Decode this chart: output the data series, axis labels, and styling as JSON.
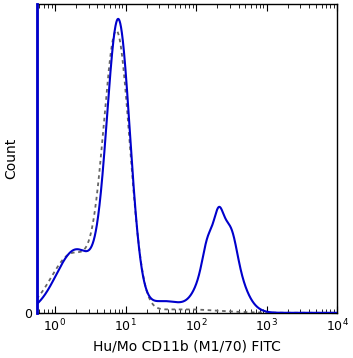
{
  "title": "",
  "xlabel": "Hu/Mo CD11b (M1/70) FITC",
  "ylabel": "Count",
  "xlim": [
    0.55,
    10000
  ],
  "ylim_min": 0,
  "ylim_max": 1.05,
  "solid_color": "#0000CC",
  "dotted_color": "#666666",
  "bg_color": "#FFFFFF",
  "solid_linewidth": 1.5,
  "dotted_linewidth": 1.3,
  "xlabel_fontsize": 10,
  "ylabel_fontsize": 10,
  "tick_fontsize": 9
}
